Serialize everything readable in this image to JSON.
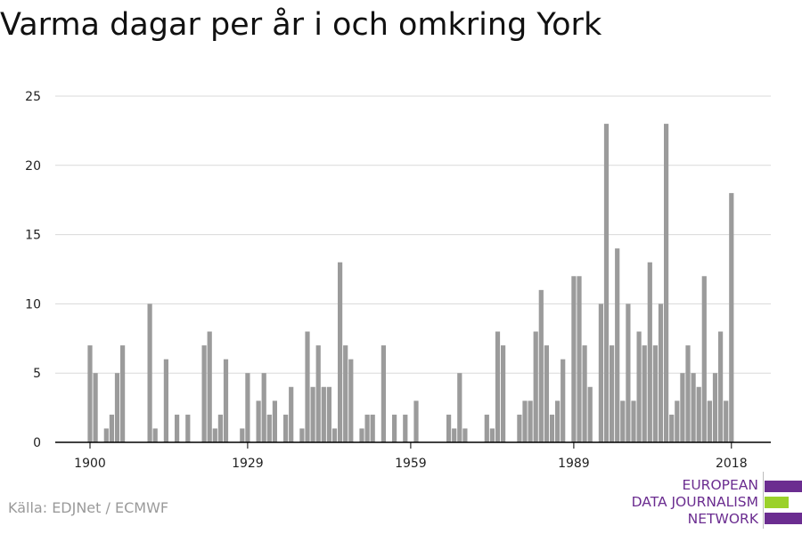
{
  "title": "Varma dagar per år i och omkring York",
  "source": "Källa: EDJNet / ECMWF",
  "logo": {
    "lines": [
      "EUROPEAN",
      "DATA JOURNALISM",
      "NETWORK"
    ],
    "colors": {
      "purple": "#6b2d90",
      "green": "#9bd12a"
    }
  },
  "colors": {
    "bar": "#9b9b9b",
    "grid": "#d9d9d9",
    "axis": "#000000"
  },
  "chart_data": {
    "type": "bar",
    "title": "Varma dagar per år i och omkring York",
    "xlabel": "",
    "ylabel": "",
    "x_start": 1900,
    "x_end": 2018,
    "x_ticks": [
      1900,
      1929,
      1959,
      1989,
      2018
    ],
    "y_ticks": [
      0,
      5,
      10,
      15,
      20,
      25
    ],
    "ylim": [
      0,
      25
    ],
    "grid": true,
    "years": [
      1900,
      1901,
      1902,
      1903,
      1904,
      1905,
      1906,
      1907,
      1908,
      1909,
      1910,
      1911,
      1912,
      1913,
      1914,
      1915,
      1916,
      1917,
      1918,
      1919,
      1920,
      1921,
      1922,
      1923,
      1924,
      1925,
      1926,
      1927,
      1928,
      1929,
      1930,
      1931,
      1932,
      1933,
      1934,
      1935,
      1936,
      1937,
      1938,
      1939,
      1940,
      1941,
      1942,
      1943,
      1944,
      1945,
      1946,
      1947,
      1948,
      1949,
      1950,
      1951,
      1952,
      1953,
      1954,
      1955,
      1956,
      1957,
      1958,
      1959,
      1960,
      1961,
      1962,
      1963,
      1964,
      1965,
      1966,
      1967,
      1968,
      1969,
      1970,
      1971,
      1972,
      1973,
      1974,
      1975,
      1976,
      1977,
      1978,
      1979,
      1980,
      1981,
      1982,
      1983,
      1984,
      1985,
      1986,
      1987,
      1988,
      1989,
      1990,
      1991,
      1992,
      1993,
      1994,
      1995,
      1996,
      1997,
      1998,
      1999,
      2000,
      2001,
      2002,
      2003,
      2004,
      2005,
      2006,
      2007,
      2008,
      2009,
      2010,
      2011,
      2012,
      2013,
      2014,
      2015,
      2016,
      2017,
      2018
    ],
    "values": [
      7,
      5,
      0,
      1,
      2,
      5,
      7,
      0,
      0,
      0,
      0,
      10,
      1,
      0,
      6,
      0,
      2,
      0,
      2,
      0,
      0,
      7,
      8,
      1,
      2,
      6,
      0,
      0,
      1,
      5,
      0,
      3,
      5,
      2,
      3,
      0,
      2,
      4,
      0,
      1,
      8,
      4,
      7,
      4,
      4,
      1,
      13,
      7,
      6,
      0,
      1,
      2,
      2,
      0,
      7,
      0,
      2,
      0,
      2,
      0,
      3,
      0,
      0,
      0,
      0,
      0,
      2,
      1,
      5,
      1,
      0,
      0,
      0,
      2,
      1,
      8,
      7,
      0,
      0,
      2,
      3,
      3,
      8,
      11,
      7,
      2,
      3,
      6,
      0,
      12,
      12,
      7,
      4,
      0,
      10,
      23,
      7,
      14,
      3,
      10,
      3,
      8,
      7,
      13,
      7,
      10,
      23,
      2,
      3,
      5,
      7,
      5,
      4,
      12,
      3,
      5,
      8,
      3,
      18
    ]
  }
}
